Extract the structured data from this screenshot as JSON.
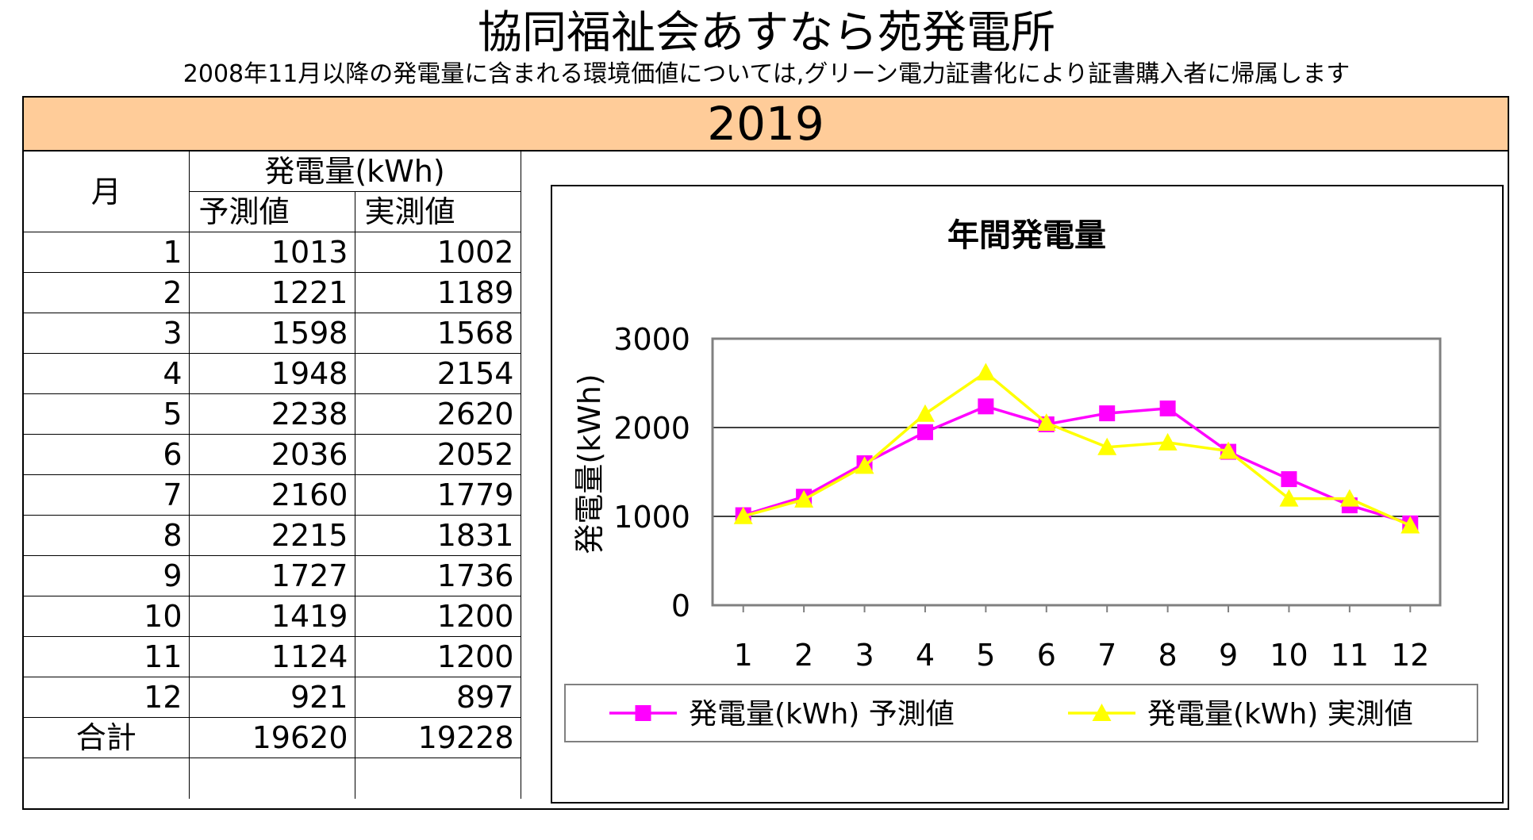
{
  "header": {
    "title": "協同福祉会あすなら苑発電所",
    "subtitle": "2008年11月以降の発電量に含まれる環境価値については,グリーン電力証書化により証書購入者に帰属します",
    "year": "2019"
  },
  "table": {
    "month_header": "月",
    "group_header": "発電量(kWh)",
    "col_forecast": "予測値",
    "col_actual": "実測値",
    "rows": [
      {
        "month": "1",
        "forecast": "1013",
        "actual": "1002"
      },
      {
        "month": "2",
        "forecast": "1221",
        "actual": "1189"
      },
      {
        "month": "3",
        "forecast": "1598",
        "actual": "1568"
      },
      {
        "month": "4",
        "forecast": "1948",
        "actual": "2154"
      },
      {
        "month": "5",
        "forecast": "2238",
        "actual": "2620"
      },
      {
        "month": "6",
        "forecast": "2036",
        "actual": "2052"
      },
      {
        "month": "7",
        "forecast": "2160",
        "actual": "1779"
      },
      {
        "month": "8",
        "forecast": "2215",
        "actual": "1831"
      },
      {
        "month": "9",
        "forecast": "1727",
        "actual": "1736"
      },
      {
        "month": "10",
        "forecast": "1419",
        "actual": "1200"
      },
      {
        "month": "11",
        "forecast": "1124",
        "actual": "1200"
      },
      {
        "month": "12",
        "forecast": "921",
        "actual": "897"
      }
    ],
    "total_label": "合計",
    "total_forecast": "19620",
    "total_actual": "19228"
  },
  "chart_data": {
    "type": "line",
    "title": "年間発電量",
    "xlabel": "",
    "ylabel": "発電量(kWh)",
    "ylim": [
      0,
      3000
    ],
    "yticks": [
      0,
      1000,
      2000,
      3000
    ],
    "categories": [
      "1",
      "2",
      "3",
      "4",
      "5",
      "6",
      "7",
      "8",
      "9",
      "10",
      "11",
      "12"
    ],
    "grid": true,
    "legend_position": "bottom",
    "series": [
      {
        "name": "発電量(kWh) 予測値",
        "marker": "square",
        "color": "#FF00FF",
        "values": [
          1013,
          1221,
          1598,
          1948,
          2238,
          2036,
          2160,
          2215,
          1727,
          1419,
          1124,
          921
        ]
      },
      {
        "name": "発電量(kWh) 実測値",
        "marker": "triangle",
        "color": "#FFFF00",
        "values": [
          1002,
          1189,
          1568,
          2154,
          2620,
          2052,
          1779,
          1831,
          1736,
          1200,
          1200,
          897
        ]
      }
    ],
    "colors": {
      "plot_border": "#808080",
      "gridline": "#000000"
    }
  }
}
